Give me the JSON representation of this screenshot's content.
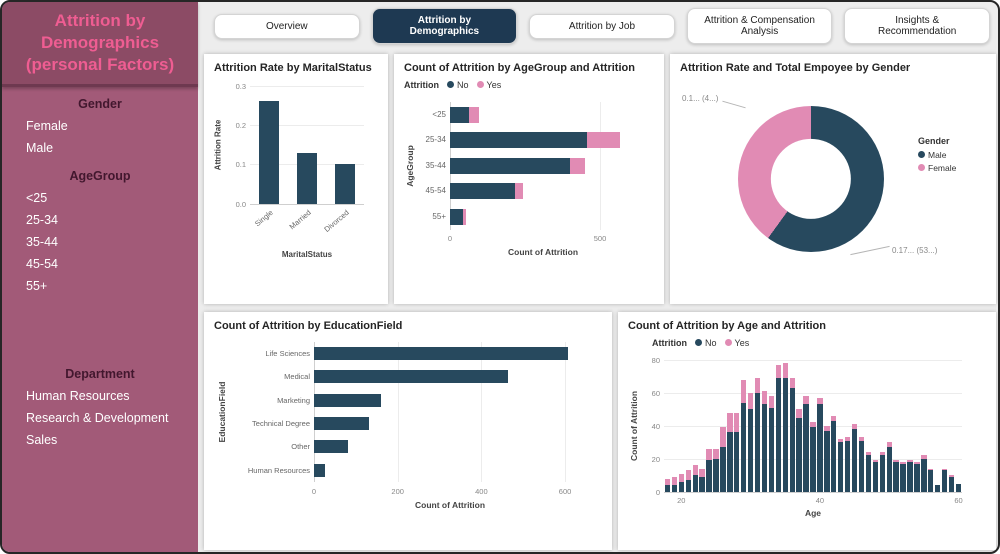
{
  "sidebar": {
    "title": "Attrition by Demographics (personal Factors)",
    "sections": [
      {
        "label": "Gender",
        "items": [
          "Female",
          "Male"
        ]
      },
      {
        "label": "AgeGroup",
        "items": [
          "<25",
          "25-34",
          "35-44",
          "45-54",
          "55+"
        ]
      },
      {
        "label": "Department",
        "items": [
          "Human Resources",
          "Research & Development",
          "Sales"
        ]
      }
    ]
  },
  "tabs": [
    {
      "label": "Overview",
      "active": false
    },
    {
      "label": "Attrition by Demographics",
      "active": true
    },
    {
      "label": "Attrition by Job",
      "active": false
    },
    {
      "label": "Attrition & Compensation Analysis",
      "active": false
    },
    {
      "label": "Insights & Recommendation",
      "active": false
    }
  ],
  "colors": {
    "no": "#27495e",
    "yes": "#e18bb4",
    "male": "#27495e",
    "female": "#e18bb4",
    "tab_active": "#1e3952",
    "sidebar": "#a25a78",
    "sidebar_header": "#8c4b65",
    "title_text": "#ef5d92"
  },
  "chart_data": [
    {
      "type": "bar",
      "title": "Attrition Rate by MaritalStatus",
      "categories": [
        "Single",
        "Married",
        "Divorced"
      ],
      "values": [
        0.26,
        0.13,
        0.1
      ],
      "xlabel": "MaritalStatus",
      "ylabel": "Attrition Rate",
      "ylim": [
        0,
        0.3
      ],
      "yticks": [
        0,
        0.1,
        0.2,
        0.3
      ]
    },
    {
      "type": "bar-h-stacked",
      "title": "Count of Attrition by AgeGroup and Attrition",
      "categories": [
        "<25",
        "25-34",
        "35-44",
        "45-54",
        "55+"
      ],
      "series": [
        {
          "name": "No",
          "values": [
            62,
            455,
            400,
            217,
            42
          ]
        },
        {
          "name": "Yes",
          "values": [
            36,
            112,
            51,
            26,
            12
          ]
        }
      ],
      "xlabel": "Count of Attrition",
      "ylabel": "AgeGroup",
      "xlim": [
        0,
        620
      ],
      "xticks": [
        0,
        500
      ],
      "legend_title": "Attrition"
    },
    {
      "type": "donut",
      "title": "Attrition Rate and Total Empoyee by Gender",
      "legend_title": "Gender",
      "slices": [
        {
          "name": "Male",
          "fraction": 0.6
        },
        {
          "name": "Female",
          "fraction": 0.4
        }
      ],
      "callouts": [
        {
          "text": "0.1... (4...)",
          "position": "top-left"
        },
        {
          "text": "0.17... (53...)",
          "position": "bottom-right"
        }
      ]
    },
    {
      "type": "bar-h",
      "title": "Count of Attrition by EducationField",
      "categories": [
        "Life Sciences",
        "Medical",
        "Marketing",
        "Technical Degree",
        "Other",
        "Human Resources"
      ],
      "values": [
        606,
        464,
        159,
        132,
        82,
        27
      ],
      "xlabel": "Count of Attrition",
      "ylabel": "EducationField",
      "xlim": [
        0,
        650
      ],
      "xticks": [
        0,
        200,
        400,
        600
      ]
    },
    {
      "type": "histogram-stacked",
      "title": "Count of Attrition by Age and Attrition",
      "legend_title": "Attrition",
      "xlabel": "Age",
      "ylabel": "Count of Attrition",
      "ylim": [
        0,
        80
      ],
      "yticks": [
        0,
        20,
        40,
        60,
        80
      ],
      "xticks": [
        20,
        40,
        60
      ],
      "ages": [
        18,
        19,
        20,
        21,
        22,
        23,
        24,
        25,
        26,
        27,
        28,
        29,
        30,
        31,
        32,
        33,
        34,
        35,
        36,
        37,
        38,
        39,
        40,
        41,
        42,
        43,
        44,
        45,
        46,
        47,
        48,
        49,
        50,
        51,
        52,
        53,
        54,
        55,
        56,
        57,
        58,
        59,
        60
      ],
      "series": [
        {
          "name": "No",
          "values": [
            4,
            4,
            6,
            7,
            10,
            9,
            19,
            20,
            27,
            36,
            36,
            54,
            50,
            60,
            53,
            51,
            69,
            69,
            63,
            45,
            53,
            39,
            53,
            37,
            43,
            30,
            31,
            38,
            31,
            22,
            18,
            22,
            27,
            18,
            17,
            18,
            17,
            20,
            13,
            4,
            13,
            9,
            5
          ]
        },
        {
          "name": "Yes",
          "values": [
            4,
            5,
            5,
            6,
            6,
            5,
            7,
            6,
            12,
            12,
            12,
            14,
            10,
            9,
            8,
            7,
            8,
            9,
            6,
            5,
            5,
            3,
            4,
            3,
            3,
            2,
            2,
            3,
            2,
            2,
            1,
            2,
            3,
            1,
            1,
            1,
            1,
            2,
            1,
            0,
            1,
            1,
            0
          ]
        }
      ]
    }
  ]
}
